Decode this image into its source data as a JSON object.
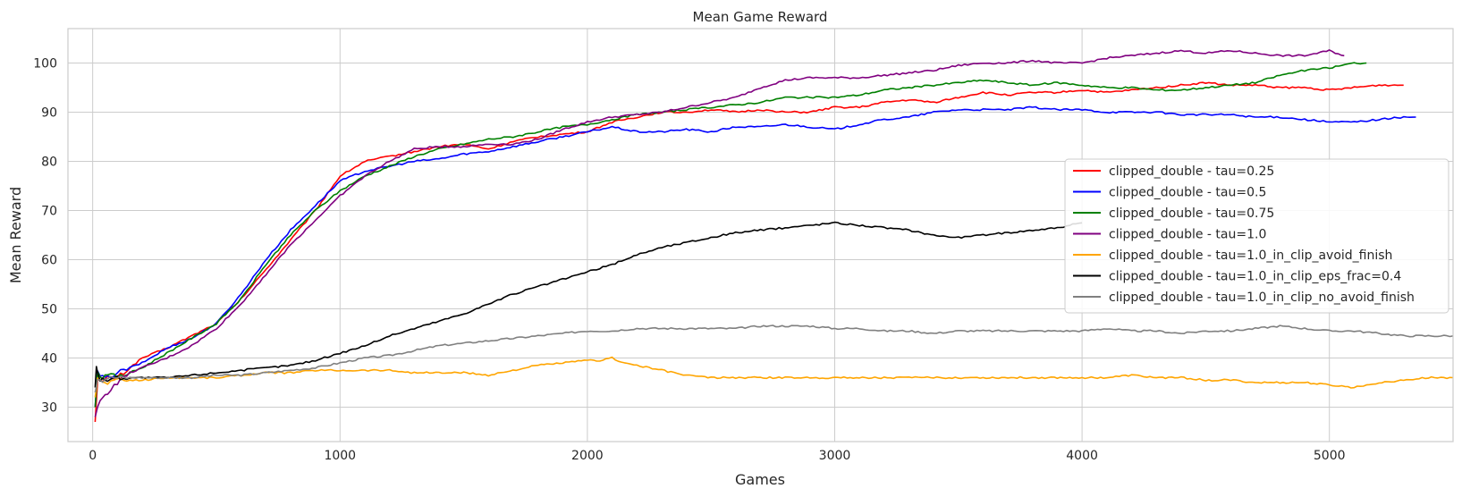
{
  "chart_data": {
    "type": "line",
    "title": "Mean Game Reward",
    "xlabel": "Games",
    "ylabel": "Mean Reward",
    "xlim": [
      -100,
      5500
    ],
    "ylim": [
      23,
      107
    ],
    "xticks": [
      0,
      1000,
      2000,
      3000,
      4000,
      5000
    ],
    "yticks": [
      30,
      40,
      50,
      60,
      70,
      80,
      90,
      100
    ],
    "grid": true,
    "legend": "right",
    "series": [
      {
        "name": "clipped_double - tau=0.25",
        "color": "#ff0000",
        "x": [
          10,
          20,
          40,
          60,
          100,
          150,
          200,
          300,
          400,
          500,
          600,
          700,
          800,
          900,
          1000,
          1100,
          1200,
          1300,
          1400,
          1500,
          1600,
          1700,
          1800,
          1900,
          2000,
          2100,
          2200,
          2300,
          2400,
          2500,
          2600,
          2700,
          2800,
          2900,
          3000,
          3100,
          3200,
          3300,
          3400,
          3500,
          3600,
          3700,
          3800,
          3900,
          4000,
          4100,
          4200,
          4300,
          4400,
          4500,
          4600,
          4700,
          4800,
          4900,
          5000,
          5100,
          5200,
          5300
        ],
        "values": [
          27,
          36,
          35,
          36,
          36,
          38,
          40,
          42,
          44.5,
          47,
          52,
          58,
          64,
          70,
          77,
          80,
          81,
          82,
          83,
          83.5,
          82.5,
          84,
          85,
          85.5,
          86,
          88,
          89,
          90,
          90,
          90.5,
          90,
          90.5,
          90,
          90,
          91,
          91,
          92,
          92.5,
          92,
          93,
          94,
          93.5,
          94,
          94,
          94.5,
          94,
          94.5,
          95,
          95.5,
          96,
          95.5,
          95.5,
          95,
          95,
          94.5,
          95,
          95.5,
          95.5
        ]
      },
      {
        "name": "clipped_double - tau=0.5",
        "color": "#0000ff",
        "x": [
          10,
          20,
          40,
          60,
          100,
          150,
          200,
          300,
          400,
          500,
          600,
          700,
          800,
          900,
          1000,
          1100,
          1200,
          1300,
          1400,
          1500,
          1600,
          1700,
          1800,
          1900,
          2000,
          2100,
          2200,
          2300,
          2400,
          2500,
          2600,
          2700,
          2800,
          2900,
          3000,
          3100,
          3200,
          3300,
          3400,
          3500,
          3600,
          3700,
          3800,
          3900,
          4000,
          4100,
          4200,
          4300,
          4400,
          4500,
          4600,
          4700,
          4800,
          4900,
          5000,
          5100,
          5200,
          5300,
          5350
        ],
        "values": [
          30,
          37,
          36,
          36,
          37,
          38,
          39,
          42,
          44,
          47,
          53,
          60,
          66,
          71,
          76,
          78,
          79,
          80,
          80.5,
          81.5,
          82,
          83,
          84,
          85,
          86,
          87,
          86,
          86,
          86.5,
          86,
          87,
          87,
          87.5,
          87,
          86.5,
          87.5,
          88.5,
          89,
          90,
          90.5,
          90.5,
          90.5,
          91,
          90.5,
          90.5,
          90,
          90,
          90,
          89.5,
          89.5,
          89.5,
          89,
          89,
          88.5,
          88,
          88,
          88.5,
          89,
          89
        ]
      },
      {
        "name": "clipped_double - tau=0.75",
        "color": "#008000",
        "x": [
          10,
          20,
          40,
          60,
          100,
          150,
          200,
          300,
          400,
          500,
          600,
          700,
          800,
          900,
          1000,
          1100,
          1200,
          1300,
          1400,
          1500,
          1600,
          1700,
          1800,
          1900,
          2000,
          2100,
          2200,
          2300,
          2400,
          2500,
          2600,
          2700,
          2800,
          2900,
          3000,
          3100,
          3200,
          3300,
          3400,
          3500,
          3600,
          3700,
          3800,
          3900,
          4000,
          4100,
          4200,
          4300,
          4400,
          4500,
          4600,
          4700,
          4800,
          4900,
          5000,
          5100,
          5150
        ],
        "values": [
          30,
          37,
          36,
          37,
          36,
          37,
          38,
          41,
          44,
          47,
          52,
          59,
          65,
          70,
          74,
          77,
          79,
          81,
          82.5,
          83.5,
          84.5,
          85,
          86,
          87,
          87.5,
          88.5,
          89.5,
          90,
          90.5,
          91,
          91.5,
          92,
          93,
          93,
          93,
          93.5,
          94.5,
          95,
          95.5,
          96,
          96.5,
          96,
          95.5,
          96,
          95.5,
          95,
          95,
          94.5,
          94.5,
          95,
          95.5,
          96,
          97.5,
          98.5,
          99,
          100,
          100
        ]
      },
      {
        "name": "clipped_double - tau=1.0",
        "color": "#800080",
        "x": [
          10,
          20,
          40,
          60,
          100,
          150,
          200,
          300,
          400,
          500,
          600,
          700,
          800,
          900,
          1000,
          1100,
          1200,
          1300,
          1400,
          1500,
          1600,
          1700,
          1800,
          1900,
          2000,
          2100,
          2200,
          2300,
          2400,
          2500,
          2600,
          2700,
          2800,
          2900,
          3000,
          3100,
          3200,
          3300,
          3400,
          3500,
          3600,
          3700,
          3800,
          3900,
          4000,
          4100,
          4200,
          4300,
          4400,
          4500,
          4600,
          4700,
          4800,
          4900,
          5000,
          5060
        ],
        "values": [
          28,
          30,
          32,
          33,
          35,
          37,
          38,
          40,
          42.5,
          46,
          51,
          57,
          63,
          68,
          73,
          77,
          80,
          82.5,
          83,
          83,
          83.5,
          83.5,
          84.5,
          86.5,
          88,
          89,
          89.5,
          90,
          91,
          92,
          93,
          95,
          96.5,
          97,
          97,
          97,
          97.5,
          98,
          98.5,
          99.5,
          100,
          100,
          100.5,
          100,
          100,
          101,
          101.5,
          102,
          102.5,
          102,
          102.5,
          102,
          101.5,
          101.5,
          102.5,
          101.5
        ]
      },
      {
        "name": "clipped_double - tau=1.0_in_clip_avoid_finish",
        "color": "#ffa500",
        "x": [
          10,
          20,
          40,
          60,
          100,
          200,
          300,
          400,
          500,
          600,
          700,
          800,
          900,
          1000,
          1100,
          1200,
          1300,
          1400,
          1500,
          1600,
          1700,
          1800,
          1900,
          2000,
          2050,
          2100,
          2150,
          2200,
          2300,
          2400,
          2500,
          2600,
          2700,
          2800,
          2900,
          3000,
          3100,
          3200,
          3300,
          3400,
          3500,
          3600,
          3700,
          3800,
          3900,
          4000,
          4100,
          4200,
          4300,
          4400,
          4500,
          4600,
          4700,
          4800,
          4900,
          5000,
          5100,
          5200,
          5300,
          5400,
          5500
        ],
        "values": [
          32,
          36,
          35,
          35,
          35.5,
          35.5,
          36,
          36,
          36,
          36.5,
          37,
          37,
          37.5,
          37.5,
          37.5,
          37.5,
          37,
          37,
          37,
          36.5,
          37.5,
          38.5,
          39,
          39.5,
          39.5,
          40,
          39,
          38.5,
          37.5,
          36.5,
          36,
          36,
          36,
          36,
          36,
          36,
          36,
          36,
          36,
          36,
          36,
          36,
          36,
          36,
          36,
          36,
          36,
          36.5,
          36,
          36,
          35.5,
          35.5,
          35,
          35,
          35,
          34.5,
          34,
          35,
          35.5,
          36,
          36
        ]
      },
      {
        "name": "clipped_double - tau=1.0_in_clip_eps_frac=0.4",
        "color": "#000000",
        "x": [
          10,
          15,
          20,
          30,
          40,
          60,
          100,
          200,
          300,
          400,
          500,
          600,
          700,
          800,
          900,
          1000,
          1100,
          1200,
          1300,
          1400,
          1500,
          1600,
          1700,
          1800,
          1900,
          2000,
          2100,
          2200,
          2300,
          2400,
          2500,
          2600,
          2700,
          2800,
          2900,
          3000,
          3100,
          3200,
          3300,
          3400,
          3500,
          3600,
          3700,
          3800,
          3900,
          4000
        ],
        "values": [
          34,
          38.5,
          37,
          35,
          36,
          35.5,
          36,
          36,
          36,
          36.5,
          37,
          37.5,
          38,
          38.5,
          39.5,
          41,
          42.5,
          44.5,
          46,
          47.5,
          49,
          51,
          53,
          54.5,
          56,
          57.5,
          59,
          61,
          62.5,
          63.5,
          64.5,
          65.5,
          66,
          66.5,
          67,
          67.5,
          67,
          66.5,
          66,
          65,
          64.5,
          65,
          65.5,
          66,
          66.5,
          67.5
        ]
      },
      {
        "name": "clipped_double - tau=1.0_in_clip_no_avoid_finish",
        "color": "#808080",
        "x": [
          10,
          20,
          40,
          60,
          100,
          200,
          300,
          400,
          500,
          600,
          700,
          800,
          900,
          1000,
          1100,
          1200,
          1300,
          1400,
          1500,
          1600,
          1700,
          1800,
          1900,
          2000,
          2100,
          2200,
          2300,
          2400,
          2500,
          2600,
          2700,
          2800,
          2900,
          3000,
          3100,
          3200,
          3300,
          3400,
          3500,
          3600,
          3700,
          3800,
          3900,
          4000,
          4100,
          4200,
          4300,
          4400,
          4500,
          4600,
          4700,
          4800,
          4900,
          5000,
          5100,
          5200,
          5300,
          5400,
          5500
        ],
        "values": [
          33,
          36,
          35.5,
          36,
          36,
          36,
          36,
          36,
          36.5,
          36.5,
          37,
          37.5,
          38,
          39,
          40,
          40.5,
          41.5,
          42.5,
          43,
          43.5,
          44,
          44.5,
          45,
          45.5,
          45.5,
          46,
          46,
          46,
          46,
          46,
          46.5,
          46.5,
          46.5,
          46,
          46,
          45.5,
          45.5,
          45,
          45.5,
          45.5,
          45.5,
          45.5,
          45.5,
          45.5,
          46,
          45.5,
          45.5,
          45,
          45.5,
          45.5,
          46,
          46.5,
          46,
          45.5,
          45.5,
          45,
          44.5,
          44.5,
          44.5
        ]
      }
    ]
  }
}
